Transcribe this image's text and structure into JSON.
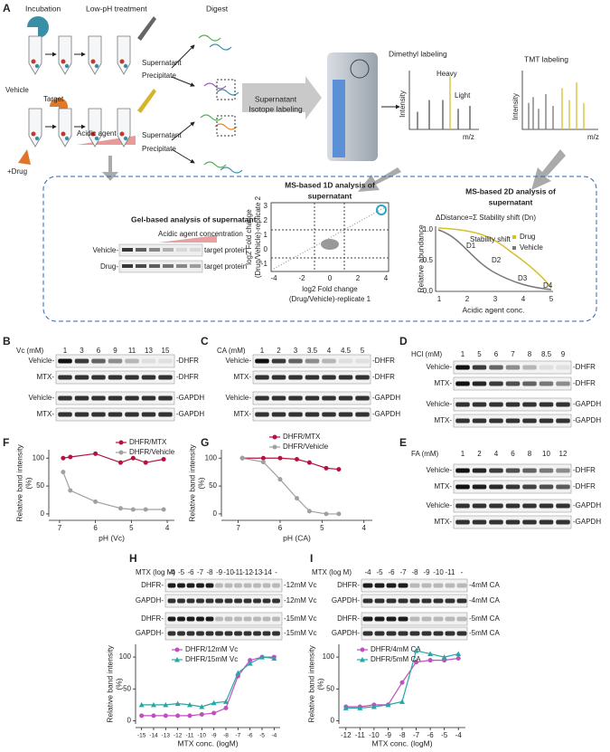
{
  "panel_labels": [
    "A",
    "B",
    "C",
    "D",
    "E",
    "F",
    "G",
    "H",
    "I"
  ],
  "schematic": {
    "incubation": "Incubation",
    "low_ph": "Low-pH treatment",
    "vehicle": "Vehicle",
    "target": "Target",
    "acidic_agent": "Acidic agent",
    "drug": "+Drug",
    "supernatant_top": "Supernatant",
    "precipitate_top": "Precipitate",
    "supernatant_bottom": "Supernatant",
    "precipitate_bottom": "Precipitate",
    "digest": "Digest",
    "labeling": [
      "Supernatant",
      "Isotope labeling"
    ],
    "dimethyl": {
      "title": "Dimethyl labeling",
      "heavy": "Heavy",
      "light": "Light",
      "ylabel": "Intensity",
      "xlabel": "m/z"
    },
    "tmt": {
      "title": "TMT labeling",
      "ylabel": "Intensity",
      "xlabel": "m/z"
    }
  },
  "gel": {
    "title": "Gel-based analysis of supernatant",
    "conc": "Acidic agent concentration",
    "rows": [
      "Vehicle-",
      "Drug-"
    ],
    "targets": [
      "target protein",
      "target protein"
    ]
  },
  "ms1d": {
    "title": [
      "MS-based 1D analysis of",
      "supernatant"
    ],
    "xticks": [
      -4,
      -2,
      0,
      2,
      4
    ],
    "yticks": [
      -1,
      0,
      1,
      2,
      3
    ],
    "xlabel": [
      "log2 Fold change",
      "(Drug/Vehicle)-replicate 1"
    ],
    "ylabel": [
      "log2 Fold change",
      "(Drug/Vehicle)-replicate 2"
    ]
  },
  "ms2d": {
    "title": [
      "MS-based 2D analysis of",
      "supernatant"
    ],
    "formula": "ΔDistance=Σ Stability shift (Dn)",
    "ylabel": "Relative abundance",
    "xlabel": "Acidic agent conc.",
    "yticks": [
      "0.0",
      "0.5",
      "1.0"
    ],
    "xticks": [
      1,
      2,
      3,
      4,
      5
    ],
    "legend": [
      "Drug",
      "Vehicle"
    ],
    "shift": "Stability shift",
    "d": [
      "D1",
      "D2",
      "D3",
      "D4"
    ]
  },
  "blots": [
    {
      "header": "Vc (mM)",
      "lanes": [
        1,
        3,
        6,
        9,
        11,
        13,
        15
      ],
      "rows": [
        {
          "left": "Vehicle-",
          "right": "-DHFR"
        },
        {
          "left": "MTX-",
          "right": "-DHFR"
        },
        {
          "left": "Vehicle-",
          "right": "-GAPDH"
        },
        {
          "left": "MTX-",
          "right": "-GAPDH"
        }
      ]
    },
    {
      "header": "CA (mM)",
      "lanes": [
        1,
        2,
        3,
        3.5,
        4,
        4.5,
        5
      ],
      "rows": [
        {
          "left": "Vehicle-",
          "right": "-DHFR"
        },
        {
          "left": "MTX-",
          "right": "-DHFR"
        },
        {
          "left": "Vehicle-",
          "right": "-GAPDH"
        },
        {
          "left": "MTX-",
          "right": "-GAPDH"
        }
      ]
    },
    {
      "header": "HCl (mM)",
      "lanes": [
        1,
        5,
        6,
        7,
        8,
        8.5,
        9
      ],
      "rows": [
        {
          "left": "Vehicle-",
          "right": "-DHFR"
        },
        {
          "left": "MTX-",
          "right": "-DHFR"
        },
        {
          "left": "Vehicle-",
          "right": "-GAPDH"
        },
        {
          "left": "MTX-",
          "right": "-GAPDH"
        }
      ]
    },
    {
      "header": "FA (mM)",
      "lanes": [
        1,
        2,
        4,
        6,
        8,
        10,
        12
      ],
      "rows": [
        {
          "left": "Vehicle-",
          "right": "-DHFR"
        },
        {
          "left": "MTX-",
          "right": "-DHFR"
        },
        {
          "left": "Vehicle-",
          "right": "-GAPDH"
        },
        {
          "left": "MTX-",
          "right": "-GAPDH"
        }
      ]
    },
    {
      "header": "MTX (log M)",
      "lanes": [
        -4,
        -5,
        -6,
        -7,
        -8,
        -9,
        -10,
        -11,
        -12,
        -13,
        -14,
        "-"
      ],
      "rows": [
        {
          "left": "DHFR-",
          "right": "-12mM Vc"
        },
        {
          "left": "GAPDH-",
          "right": "-12mM Vc"
        },
        {
          "left": "DHFR-",
          "right": "-15mM Vc"
        },
        {
          "left": "GAPDH-",
          "right": "-15mM Vc"
        }
      ]
    },
    {
      "header": "MTX (log M)",
      "lanes": [
        -4,
        -5,
        -6,
        -7,
        -8,
        -9,
        -10,
        -11,
        "-"
      ],
      "rows": [
        {
          "left": "DHFR-",
          "right": "-4mM CA"
        },
        {
          "left": "GAPDH-",
          "right": "-4mM CA"
        },
        {
          "left": "DHFR-",
          "right": "-5mM CA"
        },
        {
          "left": "GAPDH-",
          "right": "-5mM CA"
        }
      ]
    }
  ],
  "chart_data": [
    {
      "type": "line",
      "x": [
        6.9,
        6.7,
        6.0,
        5.3,
        4.95,
        4.6,
        4.1
      ],
      "xlim": [
        7.3,
        3.8
      ],
      "xticks": [
        7,
        6,
        5,
        4
      ],
      "ylim": [
        -5,
        115
      ],
      "yticks": [
        0,
        50,
        100
      ],
      "xlabel": "pH (Vc)",
      "ylabel": [
        "Relative band intensity",
        "(%)"
      ],
      "series": [
        {
          "name": "DHFR/MTX",
          "color": "#b5123f",
          "marker": "circle",
          "values": [
            100,
            102,
            108,
            92,
            100,
            92,
            98
          ]
        },
        {
          "name": "DHFR/Vehicle",
          "color": "#a0a0a0",
          "marker": "circle",
          "values": [
            75,
            42,
            22,
            10,
            8,
            8,
            8
          ]
        }
      ]
    },
    {
      "type": "line",
      "x": [
        6.9,
        6.4,
        6.0,
        5.6,
        5.3,
        4.9,
        4.6
      ],
      "xlim": [
        7.4,
        3.8
      ],
      "xticks": [
        7,
        6,
        5,
        4
      ],
      "ylim": [
        -5,
        115
      ],
      "yticks": [
        0,
        50,
        100
      ],
      "xlabel": "pH (CA)",
      "ylabel": [
        "Relative band intensity",
        "(%)"
      ],
      "series": [
        {
          "name": "DHFR/MTX",
          "color": "#b5123f",
          "marker": "circle",
          "values": [
            100,
            100,
            100,
            98,
            92,
            82,
            80
          ]
        },
        {
          "name": "DHFR/Vehicle",
          "color": "#a0a0a0",
          "marker": "circle",
          "values": [
            100,
            93,
            62,
            28,
            5,
            0,
            0
          ]
        }
      ]
    },
    {
      "type": "line",
      "x": [
        -15,
        -14,
        -13,
        -12,
        -11,
        -10,
        -9,
        -8,
        -7,
        -6,
        -5,
        -4
      ],
      "xlim": [
        -15.5,
        -3.5
      ],
      "xticks": [
        -15,
        -14,
        -13,
        -12,
        -11,
        -10,
        -9,
        -8,
        -7,
        -6,
        -5,
        -4
      ],
      "ylim": [
        -5,
        120
      ],
      "yticks": [
        0,
        50,
        100
      ],
      "xlabel": "MTX conc. (logM)",
      "ylabel": [
        "Relative band intensity",
        "(%)"
      ],
      "series": [
        {
          "name": "DHFR/12mM Vc",
          "color": "#c04fc0",
          "marker": "circle",
          "values": [
            8,
            8,
            8,
            8,
            8,
            10,
            12,
            20,
            70,
            95,
            100,
            100
          ]
        },
        {
          "name": "DHFR/15mM Vc",
          "color": "#2aa6a6",
          "marker": "triangle",
          "values": [
            25,
            25,
            25,
            27,
            25,
            22,
            28,
            30,
            75,
            90,
            100,
            98
          ]
        }
      ]
    },
    {
      "type": "line",
      "x": [
        -12,
        -11,
        -10,
        -9,
        -8,
        -7,
        -6,
        -5,
        -4
      ],
      "xlim": [
        -12.5,
        -3.5
      ],
      "xticks": [
        -12,
        -11,
        -10,
        -9,
        -8,
        -7,
        -6,
        -5,
        -4
      ],
      "ylim": [
        -5,
        120
      ],
      "yticks": [
        0,
        50,
        100
      ],
      "xlabel": "MTX conc. (logM)",
      "ylabel": [
        "Relative band intensity",
        "(%)"
      ],
      "series": [
        {
          "name": "DHFR/4mM CA",
          "color": "#c04fc0",
          "marker": "circle",
          "values": [
            22,
            22,
            25,
            25,
            60,
            92,
            95,
            95,
            98
          ]
        },
        {
          "name": "DHFR/5mM CA",
          "color": "#2aa6a6",
          "marker": "triangle",
          "values": [
            20,
            20,
            22,
            25,
            30,
            110,
            105,
            100,
            105
          ]
        }
      ]
    }
  ]
}
